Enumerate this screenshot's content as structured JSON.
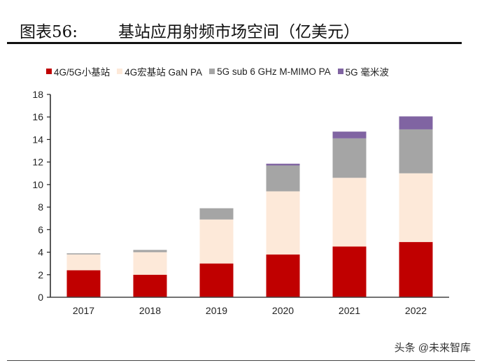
{
  "header": {
    "figure_no": "图表56:",
    "title": "基站应用射频市场空间（亿美元）"
  },
  "watermark": "头条 @未来智库",
  "chart_data": {
    "type": "bar",
    "stacked": true,
    "title": "基站应用射频市场空间（亿美元）",
    "categories": [
      "2017",
      "2018",
      "2019",
      "2020",
      "2021",
      "2022"
    ],
    "series": [
      {
        "name": "4G/5G小基站",
        "color": "#C00000",
        "values": [
          2.4,
          2.0,
          3.0,
          3.8,
          4.5,
          4.9
        ]
      },
      {
        "name": "4G宏基站 GaN PA",
        "color": "#FDE9D9",
        "values": [
          1.4,
          2.0,
          3.9,
          5.6,
          6.1,
          6.1
        ]
      },
      {
        "name": "5G sub 6 GHz M-MIMO PA",
        "color": "#A5A5A5",
        "values": [
          0.1,
          0.2,
          1.0,
          2.3,
          3.5,
          3.9
        ]
      },
      {
        "name": "5G 毫米波",
        "color": "#8064A2",
        "values": [
          0,
          0,
          0,
          0.15,
          0.6,
          1.15
        ]
      }
    ],
    "ylim": [
      0,
      18
    ],
    "yticks": [
      0,
      2,
      4,
      6,
      8,
      10,
      12,
      14,
      16,
      18
    ],
    "grid": false,
    "legend": "top"
  }
}
